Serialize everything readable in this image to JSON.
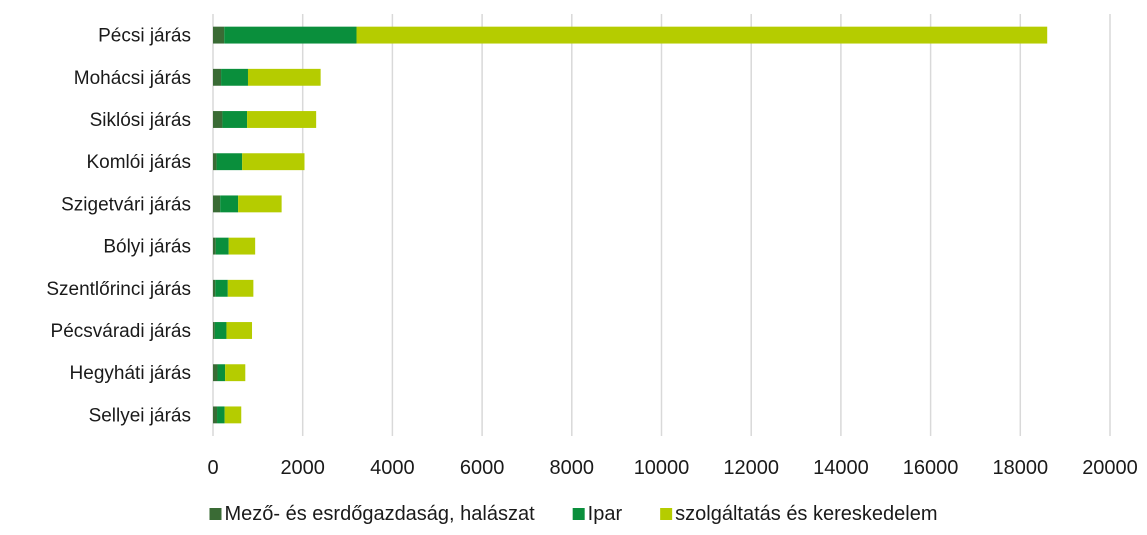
{
  "chart_data": {
    "type": "bar",
    "orientation": "horizontal",
    "stacked": true,
    "categories": [
      "Pécsi járás",
      "Mohácsi járás",
      "Siklósi járás",
      "Komlói járás",
      "Szigetvári járás",
      "Bólyi járás",
      "Szentlőrinci járás",
      "Pécsváradi járás",
      "Hegyháti járás",
      "Sellyei járás"
    ],
    "series": [
      {
        "name": "Mező- és esrdőgazdaság, halászat",
        "color": "#3a6b35",
        "values": [
          250,
          180,
          210,
          80,
          160,
          60,
          50,
          40,
          100,
          90
        ]
      },
      {
        "name": "Ipar",
        "color": "#0a8f3c",
        "values": [
          2950,
          600,
          550,
          570,
          400,
          290,
          280,
          260,
          170,
          170
        ]
      },
      {
        "name": "szolgáltatás és kereskedelem",
        "color": "#b5cc00",
        "values": [
          15400,
          1620,
          1540,
          1390,
          970,
          590,
          570,
          570,
          450,
          370
        ]
      }
    ],
    "xlim": [
      0,
      20000
    ],
    "xticks": [
      "0",
      "2000",
      "4000",
      "6000",
      "8000",
      "10000",
      "12000",
      "14000",
      "16000",
      "18000",
      "20000"
    ],
    "grid": true,
    "legend": "bottom",
    "title": "",
    "xlabel": "",
    "ylabel": ""
  }
}
